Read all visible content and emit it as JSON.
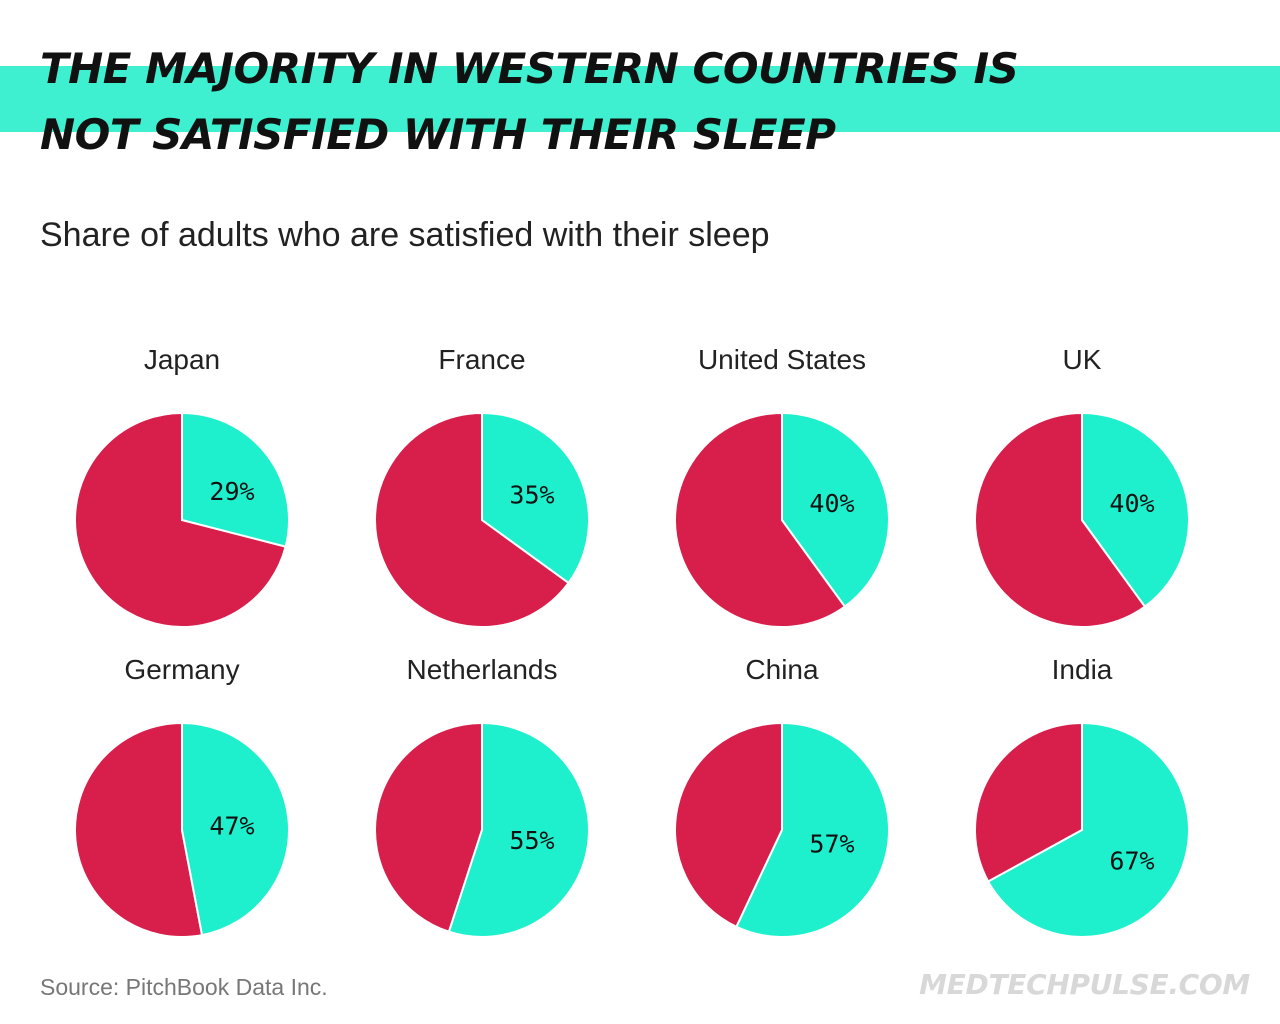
{
  "header": {
    "title_line1": "THE MAJORITY IN WESTERN COUNTRIES IS",
    "title_line2": "NOT SATISFIED WITH THEIR SLEEP",
    "subtitle": "Share of adults who are satisfied with their sleep"
  },
  "footer": {
    "source": "Source: PitchBook Data Inc.",
    "brand": "MEDTECHPULSE.COM"
  },
  "colors": {
    "satisfied": "#1ef0cd",
    "not_satisfied": "#d81e4b",
    "band": "#3ef0cf"
  },
  "chart_data": {
    "type": "pie",
    "title": "Share of adults who are satisfied with their sleep",
    "legend": "none",
    "unit": "%",
    "charts": [
      {
        "country": "Japan",
        "satisfied": 29,
        "label": "29%"
      },
      {
        "country": "France",
        "satisfied": 35,
        "label": "35%"
      },
      {
        "country": "United States",
        "satisfied": 40,
        "label": "40%"
      },
      {
        "country": "UK",
        "satisfied": 40,
        "label": "40%"
      },
      {
        "country": "Germany",
        "satisfied": 47,
        "label": "47%"
      },
      {
        "country": "Netherlands",
        "satisfied": 55,
        "label": "55%"
      },
      {
        "country": "China",
        "satisfied": 57,
        "label": "57%"
      },
      {
        "country": "India",
        "satisfied": 67,
        "label": "67%"
      }
    ]
  }
}
